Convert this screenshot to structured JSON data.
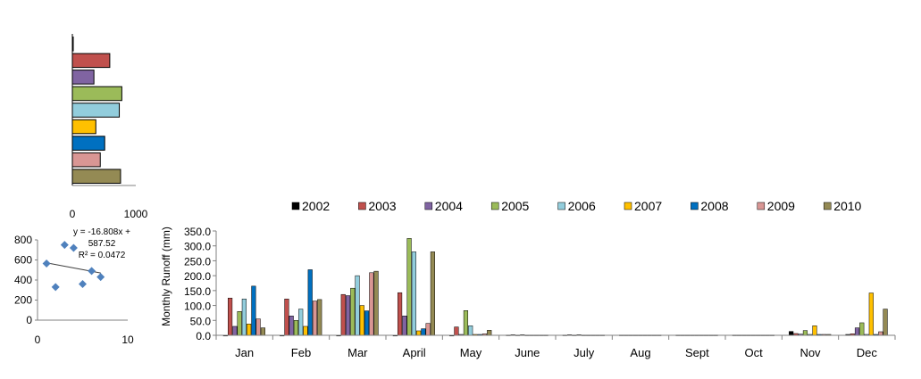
{
  "colors": {
    "2002": "#000000",
    "2003": "#C0504D",
    "2004": "#8064A2",
    "2005": "#9BBB59",
    "2006": "#92CDDC",
    "2007": "#FFC000",
    "2008": "#0070C0",
    "2009": "#D99694",
    "2010": "#948A54",
    "scatter_marker": "#4F81BD"
  },
  "chart_data": [
    {
      "type": "bar",
      "orientation": "horizontal",
      "categories": [
        "2002",
        "2003",
        "2004",
        "2005",
        "2006",
        "2007",
        "2008",
        "2009",
        "2010"
      ],
      "values": [
        5,
        590,
        340,
        780,
        740,
        370,
        510,
        440,
        760
      ],
      "xlim": [
        0,
        1000
      ],
      "xticks": [
        "0",
        "1000"
      ]
    },
    {
      "type": "scatter",
      "x": [
        1,
        2,
        3,
        4,
        5,
        6,
        7
      ],
      "y": [
        565,
        330,
        750,
        720,
        360,
        490,
        430
      ],
      "xlim": [
        0,
        10
      ],
      "ylim": [
        0,
        800
      ],
      "xticks": [
        "0",
        "10"
      ],
      "yticks": [
        "0",
        "200",
        "400",
        "600",
        "800"
      ],
      "trendline": {
        "slope": -16.808,
        "intercept": 587.52
      },
      "annotation": [
        "y = -16.808x +",
        "587.52",
        "R² = 0.0472"
      ]
    },
    {
      "type": "bar",
      "categories": [
        "Jan",
        "Feb",
        "Mar",
        "April",
        "May",
        "June",
        "July",
        "Aug",
        "Sept",
        "Oct",
        "Nov",
        "Dec"
      ],
      "ylabel": "Monthly  Runoff (mm)",
      "ylim": [
        0,
        350
      ],
      "yticks": [
        "0.0",
        "50.0",
        "100.0",
        "150.0",
        "200.0",
        "250.0",
        "300.0",
        "350.0"
      ],
      "legend_position": "top",
      "series": [
        {
          "name": "2002",
          "values": [
            0,
            0,
            0,
            0,
            0,
            1,
            1,
            1,
            1,
            1,
            13,
            3
          ]
        },
        {
          "name": "2003",
          "values": [
            125,
            122,
            137,
            143,
            28,
            2,
            2,
            1,
            1,
            1,
            6,
            5
          ]
        },
        {
          "name": "2004",
          "values": [
            30,
            65,
            133,
            65,
            3,
            1,
            1,
            1,
            1,
            1,
            4,
            25
          ]
        },
        {
          "name": "2005",
          "values": [
            80,
            50,
            158,
            325,
            83,
            2,
            2,
            1,
            1,
            1,
            16,
            42
          ]
        },
        {
          "name": "2006",
          "values": [
            122,
            88,
            200,
            280,
            32,
            1,
            1,
            1,
            1,
            1,
            3,
            3
          ]
        },
        {
          "name": "2007",
          "values": [
            38,
            30,
            100,
            15,
            3,
            1,
            1,
            1,
            1,
            1,
            32,
            142
          ]
        },
        {
          "name": "2008",
          "values": [
            165,
            220,
            82,
            22,
            3,
            1,
            1,
            1,
            1,
            1,
            3,
            3
          ]
        },
        {
          "name": "2009",
          "values": [
            55,
            115,
            210,
            40,
            5,
            1,
            1,
            1,
            1,
            1,
            3,
            12
          ]
        },
        {
          "name": "2010",
          "values": [
            25,
            120,
            215,
            280,
            17,
            1,
            1,
            1,
            1,
            1,
            3,
            88
          ]
        }
      ]
    }
  ]
}
